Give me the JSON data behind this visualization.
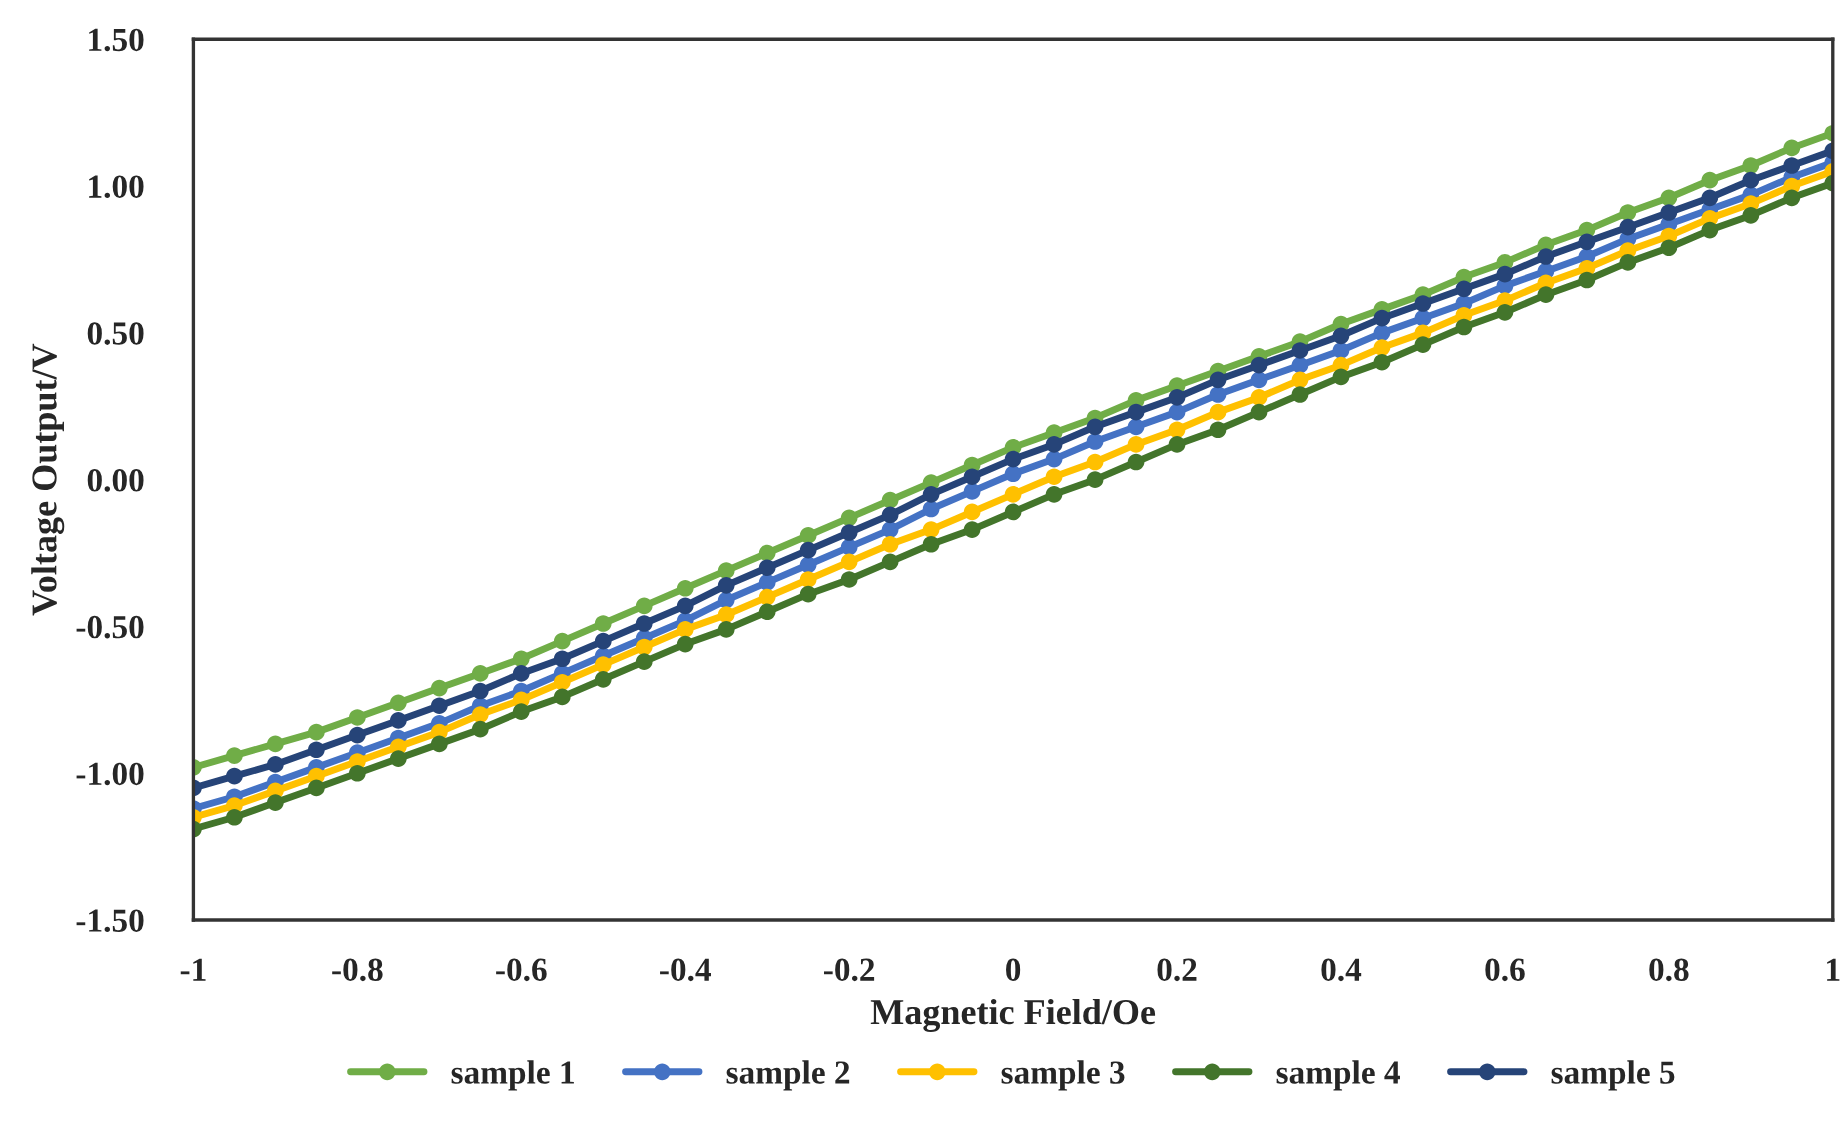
{
  "chart_data": {
    "type": "line",
    "xlabel": "Magnetic Field/Oe",
    "ylabel": "Voltage Output/V",
    "x": [
      -1,
      -0.95,
      -0.9,
      -0.85,
      -0.8,
      -0.75,
      -0.7,
      -0.65,
      -0.6,
      -0.55,
      -0.5,
      -0.45,
      -0.4,
      -0.35,
      -0.3,
      -0.25,
      -0.2,
      -0.15,
      -0.1,
      -0.05,
      0,
      0.05,
      0.1,
      0.15,
      0.2,
      0.25,
      0.3,
      0.35,
      0.4,
      0.45,
      0.5,
      0.55,
      0.6,
      0.65,
      0.7,
      0.75,
      0.8,
      0.85,
      0.9,
      0.95,
      1
    ],
    "series": [
      {
        "name": "sample 1",
        "color": "#70ad47",
        "values": [
          -0.98,
          -0.94,
          -0.9,
          -0.86,
          -0.81,
          -0.76,
          -0.71,
          -0.66,
          -0.61,
          -0.55,
          -0.49,
          -0.43,
          -0.37,
          -0.31,
          -0.25,
          -0.19,
          -0.13,
          -0.07,
          -0.01,
          0.05,
          0.11,
          0.16,
          0.21,
          0.27,
          0.32,
          0.37,
          0.42,
          0.47,
          0.53,
          0.58,
          0.63,
          0.69,
          0.74,
          0.8,
          0.85,
          0.91,
          0.96,
          1.02,
          1.07,
          1.13,
          1.18
        ]
      },
      {
        "name": "sample 2",
        "color": "#4472c4",
        "values": [
          -1.12,
          -1.08,
          -1.03,
          -0.98,
          -0.93,
          -0.88,
          -0.83,
          -0.77,
          -0.72,
          -0.66,
          -0.6,
          -0.54,
          -0.48,
          -0.41,
          -0.35,
          -0.29,
          -0.23,
          -0.17,
          -0.1,
          -0.04,
          0.02,
          0.07,
          0.13,
          0.18,
          0.23,
          0.29,
          0.34,
          0.39,
          0.44,
          0.5,
          0.55,
          0.6,
          0.66,
          0.71,
          0.76,
          0.82,
          0.87,
          0.92,
          0.97,
          1.03,
          1.08
        ]
      },
      {
        "name": "sample 3",
        "color": "#ffc000",
        "values": [
          -1.15,
          -1.11,
          -1.06,
          -1.01,
          -0.96,
          -0.91,
          -0.86,
          -0.8,
          -0.75,
          -0.69,
          -0.63,
          -0.57,
          -0.51,
          -0.46,
          -0.4,
          -0.34,
          -0.28,
          -0.22,
          -0.17,
          -0.11,
          -0.05,
          0.01,
          0.06,
          0.12,
          0.17,
          0.23,
          0.28,
          0.34,
          0.39,
          0.45,
          0.5,
          0.56,
          0.61,
          0.67,
          0.72,
          0.78,
          0.83,
          0.89,
          0.94,
          1.0,
          1.05
        ]
      },
      {
        "name": "sample 4",
        "color": "#43752b",
        "values": [
          -1.19,
          -1.15,
          -1.1,
          -1.05,
          -1.0,
          -0.95,
          -0.9,
          -0.85,
          -0.79,
          -0.74,
          -0.68,
          -0.62,
          -0.56,
          -0.51,
          -0.45,
          -0.39,
          -0.34,
          -0.28,
          -0.22,
          -0.17,
          -0.11,
          -0.05,
          0.0,
          0.06,
          0.12,
          0.17,
          0.23,
          0.29,
          0.35,
          0.4,
          0.46,
          0.52,
          0.57,
          0.63,
          0.68,
          0.74,
          0.79,
          0.85,
          0.9,
          0.96,
          1.01
        ]
      },
      {
        "name": "sample 5",
        "color": "#264478",
        "values": [
          -1.05,
          -1.01,
          -0.97,
          -0.92,
          -0.87,
          -0.82,
          -0.77,
          -0.72,
          -0.66,
          -0.61,
          -0.55,
          -0.49,
          -0.43,
          -0.36,
          -0.3,
          -0.24,
          -0.18,
          -0.12,
          -0.05,
          0.01,
          0.07,
          0.12,
          0.18,
          0.23,
          0.28,
          0.34,
          0.39,
          0.44,
          0.49,
          0.55,
          0.6,
          0.65,
          0.7,
          0.76,
          0.81,
          0.86,
          0.91,
          0.96,
          1.02,
          1.07,
          1.12
        ]
      }
    ],
    "xlim": [
      -1,
      1
    ],
    "xticks": [
      {
        "value": -1,
        "label": "-1"
      },
      {
        "value": -0.8,
        "label": "-0.8"
      },
      {
        "value": -0.6,
        "label": "-0.6"
      },
      {
        "value": -0.4,
        "label": "-0.4"
      },
      {
        "value": -0.2,
        "label": "-0.2"
      },
      0,
      0.2,
      0.4,
      0.6,
      0.8,
      1
    ],
    "ylim": [
      -1.5,
      1.5
    ],
    "yticks": [
      {
        "value": -1.5,
        "label": "-1.50"
      },
      {
        "value": -1.0,
        "label": "-1.00"
      },
      {
        "value": -0.5,
        "label": "-0.50"
      },
      {
        "value": 0,
        "label": "0.00"
      },
      {
        "value": 0.5,
        "label": "0.50"
      },
      {
        "value": 1.0,
        "label": "1.00"
      },
      {
        "value": 1.5,
        "label": "1.50"
      }
    ],
    "grid": false,
    "legend": "bottom",
    "marker": "circle",
    "line_style": "solid"
  }
}
